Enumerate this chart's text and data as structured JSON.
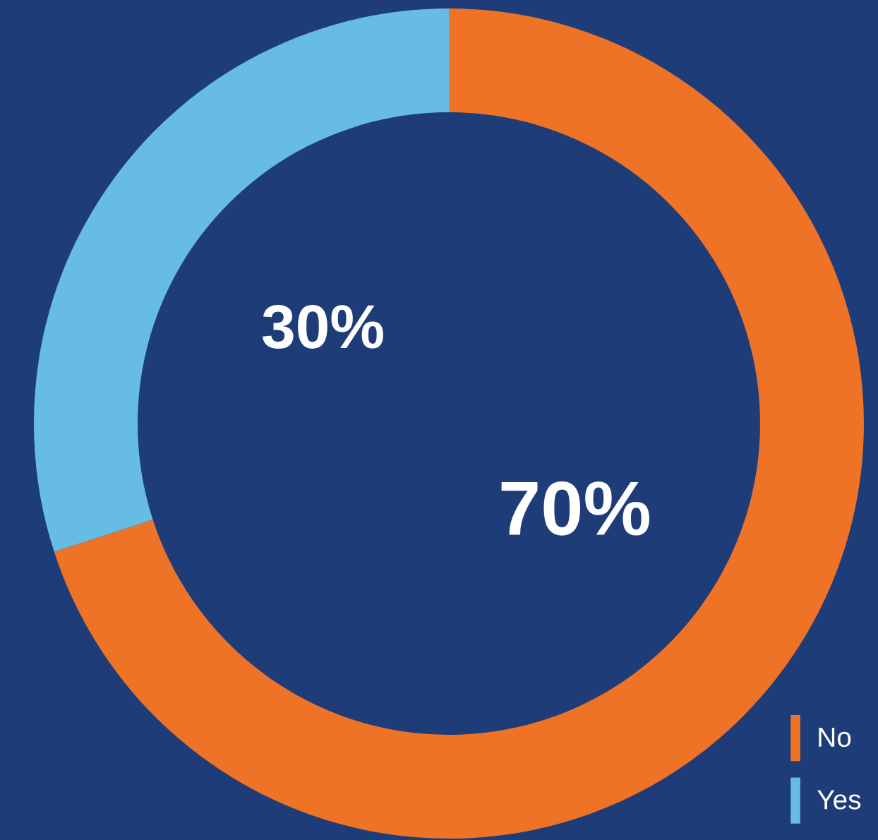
{
  "chart_data": {
    "type": "donut",
    "categories": [
      "No",
      "Yes"
    ],
    "values": [
      70,
      30
    ],
    "colors": [
      "#ee7326",
      "#66bce3"
    ],
    "value_labels": [
      "70%",
      "30%"
    ],
    "legend": "bottom right"
  }
}
